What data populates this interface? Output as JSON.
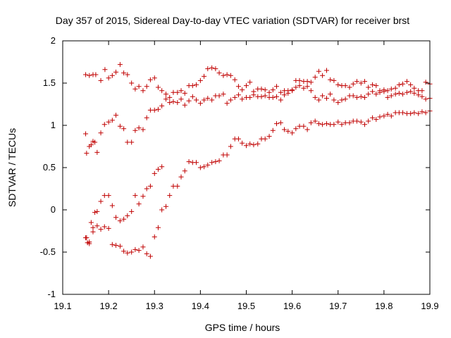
{
  "chart_data": {
    "type": "scatter",
    "title": "Day 357 of 2015, Sidereal Day-to-day VTEC variation (SDTVAR) for receiver brst",
    "xlabel": "GPS time / hours",
    "ylabel": "SDTVAR / TECUs",
    "xlim": [
      19.1,
      19.9
    ],
    "ylim": [
      -1,
      2
    ],
    "xticks": [
      19.1,
      19.2,
      19.3,
      19.4,
      19.5,
      19.6,
      19.7,
      19.8,
      19.9
    ],
    "xtick_labels": [
      "19.1",
      "19.2",
      "19.3",
      "19.4",
      "19.5",
      "19.6",
      "19.7",
      "19.8",
      "19.9"
    ],
    "yticks": [
      -1,
      -0.5,
      0,
      0.5,
      1,
      1.5,
      2
    ],
    "ytick_labels": [
      "-1",
      "-0.5",
      "0",
      "0.5",
      "1",
      "1.5",
      "2"
    ],
    "grid": false,
    "marker": "+",
    "marker_color": "#c00000",
    "series": [
      {
        "name": "series-a",
        "points": [
          [
            19.15,
            1.6
          ],
          [
            19.158,
            1.59
          ],
          [
            19.166,
            1.6
          ],
          [
            19.172,
            1.6
          ],
          [
            19.183,
            1.53
          ],
          [
            19.192,
            1.66
          ],
          [
            19.2,
            1.56
          ],
          [
            19.208,
            1.59
          ],
          [
            19.216,
            1.63
          ],
          [
            19.225,
            1.72
          ],
          [
            19.233,
            1.62
          ],
          [
            19.241,
            1.6
          ],
          [
            19.25,
            1.5
          ],
          [
            19.258,
            1.43
          ],
          [
            19.266,
            1.46
          ],
          [
            19.275,
            1.41
          ],
          [
            19.283,
            1.46
          ],
          [
            19.291,
            1.54
          ],
          [
            19.3,
            1.56
          ],
          [
            19.308,
            1.45
          ],
          [
            19.316,
            1.41
          ],
          [
            19.325,
            1.37
          ],
          [
            19.333,
            1.33
          ],
          [
            19.341,
            1.39
          ],
          [
            19.35,
            1.39
          ],
          [
            19.358,
            1.41
          ],
          [
            19.366,
            1.38
          ],
          [
            19.375,
            1.47
          ],
          [
            19.383,
            1.47
          ],
          [
            19.391,
            1.48
          ],
          [
            19.4,
            1.53
          ],
          [
            19.408,
            1.58
          ],
          [
            19.416,
            1.67
          ],
          [
            19.425,
            1.68
          ],
          [
            19.433,
            1.67
          ],
          [
            19.441,
            1.62
          ],
          [
            19.45,
            1.59
          ],
          [
            19.458,
            1.6
          ],
          [
            19.466,
            1.59
          ],
          [
            19.475,
            1.54
          ],
          [
            19.483,
            1.46
          ],
          [
            19.491,
            1.42
          ],
          [
            19.5,
            1.47
          ],
          [
            19.508,
            1.51
          ],
          [
            19.516,
            1.4
          ],
          [
            19.525,
            1.43
          ],
          [
            19.533,
            1.43
          ],
          [
            19.541,
            1.42
          ],
          [
            19.55,
            1.39
          ],
          [
            19.558,
            1.42
          ],
          [
            19.566,
            1.46
          ],
          [
            19.575,
            1.39
          ],
          [
            19.583,
            1.41
          ],
          [
            19.591,
            1.41
          ],
          [
            19.6,
            1.41
          ],
          [
            19.608,
            1.53
          ],
          [
            19.616,
            1.53
          ],
          [
            19.625,
            1.52
          ],
          [
            19.633,
            1.52
          ],
          [
            19.641,
            1.51
          ],
          [
            19.65,
            1.57
          ],
          [
            19.658,
            1.64
          ],
          [
            19.666,
            1.59
          ],
          [
            19.675,
            1.65
          ],
          [
            19.683,
            1.54
          ],
          [
            19.691,
            1.53
          ],
          [
            19.7,
            1.48
          ],
          [
            19.708,
            1.47
          ],
          [
            19.716,
            1.47
          ],
          [
            19.725,
            1.45
          ],
          [
            19.733,
            1.49
          ],
          [
            19.741,
            1.52
          ],
          [
            19.75,
            1.5
          ],
          [
            19.758,
            1.52
          ],
          [
            19.766,
            1.45
          ],
          [
            19.775,
            1.48
          ],
          [
            19.783,
            1.47
          ],
          [
            19.791,
            1.39
          ],
          [
            19.8,
            1.42
          ],
          [
            19.808,
            1.41
          ],
          [
            19.816,
            1.43
          ],
          [
            19.825,
            1.44
          ],
          [
            19.833,
            1.48
          ],
          [
            19.841,
            1.49
          ],
          [
            19.85,
            1.52
          ],
          [
            19.858,
            1.48
          ],
          [
            19.866,
            1.44
          ],
          [
            19.875,
            1.41
          ],
          [
            19.883,
            1.41
          ],
          [
            19.891,
            1.51
          ],
          [
            19.9,
            1.49
          ]
        ]
      },
      {
        "name": "series-b",
        "points": [
          [
            19.15,
            0.9
          ],
          [
            19.152,
            0.67
          ],
          [
            19.158,
            0.75
          ],
          [
            19.162,
            0.77
          ],
          [
            19.166,
            0.81
          ],
          [
            19.17,
            0.8
          ],
          [
            19.175,
            0.68
          ],
          [
            19.183,
            0.91
          ],
          [
            19.191,
            1.01
          ],
          [
            19.2,
            1.04
          ],
          [
            19.208,
            1.06
          ],
          [
            19.216,
            1.12
          ],
          [
            19.225,
            0.99
          ],
          [
            19.233,
            0.96
          ],
          [
            19.241,
            0.8
          ],
          [
            19.25,
            0.8
          ],
          [
            19.258,
            0.94
          ],
          [
            19.266,
            0.97
          ],
          [
            19.275,
            0.95
          ],
          [
            19.283,
            1.09
          ],
          [
            19.291,
            1.18
          ],
          [
            19.3,
            1.18
          ],
          [
            19.308,
            1.19
          ],
          [
            19.316,
            1.23
          ],
          [
            19.325,
            1.31
          ],
          [
            19.333,
            1.27
          ],
          [
            19.341,
            1.28
          ],
          [
            19.35,
            1.27
          ],
          [
            19.358,
            1.31
          ],
          [
            19.366,
            1.24
          ],
          [
            19.375,
            1.29
          ],
          [
            19.383,
            1.34
          ],
          [
            19.391,
            1.3
          ],
          [
            19.4,
            1.26
          ],
          [
            19.408,
            1.3
          ],
          [
            19.416,
            1.32
          ],
          [
            19.425,
            1.3
          ],
          [
            19.433,
            1.35
          ],
          [
            19.441,
            1.35
          ],
          [
            19.45,
            1.37
          ],
          [
            19.458,
            1.26
          ],
          [
            19.466,
            1.3
          ],
          [
            19.475,
            1.33
          ],
          [
            19.483,
            1.36
          ],
          [
            19.491,
            1.31
          ],
          [
            19.5,
            1.33
          ],
          [
            19.508,
            1.33
          ],
          [
            19.516,
            1.36
          ],
          [
            19.525,
            1.34
          ],
          [
            19.533,
            1.34
          ],
          [
            19.541,
            1.35
          ],
          [
            19.55,
            1.33
          ],
          [
            19.558,
            1.33
          ],
          [
            19.566,
            1.34
          ],
          [
            19.575,
            1.3
          ],
          [
            19.583,
            1.36
          ],
          [
            19.591,
            1.38
          ],
          [
            19.6,
            1.42
          ],
          [
            19.608,
            1.45
          ],
          [
            19.616,
            1.47
          ],
          [
            19.625,
            1.44
          ],
          [
            19.633,
            1.46
          ],
          [
            19.641,
            1.41
          ],
          [
            19.65,
            1.33
          ],
          [
            19.658,
            1.3
          ],
          [
            19.666,
            1.35
          ],
          [
            19.675,
            1.32
          ],
          [
            19.683,
            1.37
          ],
          [
            19.691,
            1.3
          ],
          [
            19.7,
            1.27
          ],
          [
            19.708,
            1.3
          ],
          [
            19.716,
            1.31
          ],
          [
            19.725,
            1.35
          ],
          [
            19.733,
            1.35
          ],
          [
            19.741,
            1.33
          ],
          [
            19.75,
            1.34
          ],
          [
            19.758,
            1.33
          ],
          [
            19.766,
            1.37
          ],
          [
            19.775,
            1.4
          ],
          [
            19.783,
            1.37
          ],
          [
            19.791,
            1.41
          ],
          [
            19.8,
            1.4
          ],
          [
            19.808,
            1.33
          ],
          [
            19.816,
            1.35
          ],
          [
            19.825,
            1.37
          ],
          [
            19.833,
            1.38
          ],
          [
            19.841,
            1.37
          ],
          [
            19.85,
            1.39
          ],
          [
            19.858,
            1.4
          ],
          [
            19.866,
            1.38
          ],
          [
            19.875,
            1.36
          ],
          [
            19.883,
            1.34
          ],
          [
            19.891,
            1.31
          ],
          [
            19.9,
            1.32
          ]
        ]
      },
      {
        "name": "series-c",
        "points": [
          [
            19.15,
            -0.33
          ],
          [
            19.154,
            -0.39
          ],
          [
            19.158,
            -0.38
          ],
          [
            19.162,
            -0.15
          ],
          [
            19.166,
            -0.26
          ],
          [
            19.17,
            -0.03
          ],
          [
            19.175,
            -0.02
          ],
          [
            19.183,
            0.1
          ],
          [
            19.191,
            0.17
          ],
          [
            19.2,
            0.17
          ],
          [
            19.208,
            0.05
          ],
          [
            19.216,
            -0.09
          ],
          [
            19.225,
            -0.13
          ],
          [
            19.233,
            -0.11
          ],
          [
            19.241,
            -0.07
          ],
          [
            19.25,
            -0.02
          ],
          [
            19.258,
            0.17
          ],
          [
            19.266,
            0.07
          ],
          [
            19.275,
            0.16
          ],
          [
            19.283,
            0.25
          ],
          [
            19.291,
            0.28
          ],
          [
            19.3,
            0.43
          ],
          [
            19.308,
            0.48
          ],
          [
            19.316,
            0.51
          ],
          [
            19.325,
            0.04
          ],
          [
            19.333,
            0.17
          ],
          [
            19.341,
            0.28
          ],
          [
            19.35,
            0.28
          ],
          [
            19.358,
            0.39
          ],
          [
            19.366,
            0.46
          ],
          [
            19.375,
            0.57
          ],
          [
            19.383,
            0.56
          ],
          [
            19.391,
            0.56
          ],
          [
            19.4,
            0.5
          ],
          [
            19.408,
            0.51
          ],
          [
            19.416,
            0.53
          ],
          [
            19.425,
            0.56
          ],
          [
            19.433,
            0.57
          ],
          [
            19.441,
            0.58
          ],
          [
            19.45,
            0.65
          ],
          [
            19.458,
            0.65
          ],
          [
            19.466,
            0.75
          ],
          [
            19.475,
            0.84
          ],
          [
            19.483,
            0.84
          ],
          [
            19.491,
            0.79
          ],
          [
            19.5,
            0.76
          ],
          [
            19.508,
            0.78
          ],
          [
            19.516,
            0.77
          ],
          [
            19.525,
            0.78
          ],
          [
            19.533,
            0.84
          ],
          [
            19.541,
            0.84
          ],
          [
            19.55,
            0.87
          ],
          [
            19.558,
            0.94
          ],
          [
            19.566,
            1.02
          ],
          [
            19.575,
            1.03
          ],
          [
            19.583,
            0.95
          ],
          [
            19.591,
            0.93
          ],
          [
            19.6,
            0.91
          ],
          [
            19.608,
            0.96
          ],
          [
            19.616,
            0.99
          ],
          [
            19.625,
            0.99
          ],
          [
            19.633,
            0.95
          ],
          [
            19.641,
            1.03
          ],
          [
            19.65,
            1.05
          ],
          [
            19.658,
            1.02
          ],
          [
            19.666,
            1.01
          ],
          [
            19.675,
            1.02
          ],
          [
            19.683,
            1.01
          ],
          [
            19.691,
            1.01
          ],
          [
            19.7,
            1.04
          ],
          [
            19.708,
            1.01
          ],
          [
            19.716,
            1.03
          ],
          [
            19.725,
            1.03
          ],
          [
            19.733,
            1.05
          ],
          [
            19.741,
            1.05
          ],
          [
            19.75,
            1.04
          ],
          [
            19.758,
            1.01
          ],
          [
            19.766,
            1.05
          ],
          [
            19.775,
            1.09
          ],
          [
            19.783,
            1.07
          ],
          [
            19.791,
            1.1
          ],
          [
            19.8,
            1.11
          ],
          [
            19.808,
            1.13
          ],
          [
            19.816,
            1.11
          ],
          [
            19.825,
            1.15
          ],
          [
            19.833,
            1.15
          ],
          [
            19.841,
            1.15
          ],
          [
            19.85,
            1.14
          ],
          [
            19.858,
            1.14
          ],
          [
            19.866,
            1.15
          ],
          [
            19.875,
            1.14
          ],
          [
            19.883,
            1.16
          ],
          [
            19.891,
            1.15
          ],
          [
            19.9,
            1.17
          ]
        ]
      },
      {
        "name": "series-d",
        "points": [
          [
            19.152,
            -0.33
          ],
          [
            19.158,
            -0.4
          ],
          [
            19.166,
            -0.21
          ],
          [
            19.175,
            -0.19
          ],
          [
            19.183,
            -0.23
          ],
          [
            19.191,
            -0.2
          ],
          [
            19.2,
            -0.22
          ],
          [
            19.208,
            -0.41
          ],
          [
            19.216,
            -0.42
          ],
          [
            19.225,
            -0.43
          ],
          [
            19.233,
            -0.49
          ],
          [
            19.241,
            -0.51
          ],
          [
            19.25,
            -0.5
          ],
          [
            19.258,
            -0.47
          ],
          [
            19.266,
            -0.48
          ],
          [
            19.275,
            -0.44
          ],
          [
            19.283,
            -0.52
          ],
          [
            19.291,
            -0.55
          ],
          [
            19.3,
            -0.32
          ],
          [
            19.308,
            -0.21
          ],
          [
            19.316,
            0.0
          ]
        ]
      }
    ]
  }
}
